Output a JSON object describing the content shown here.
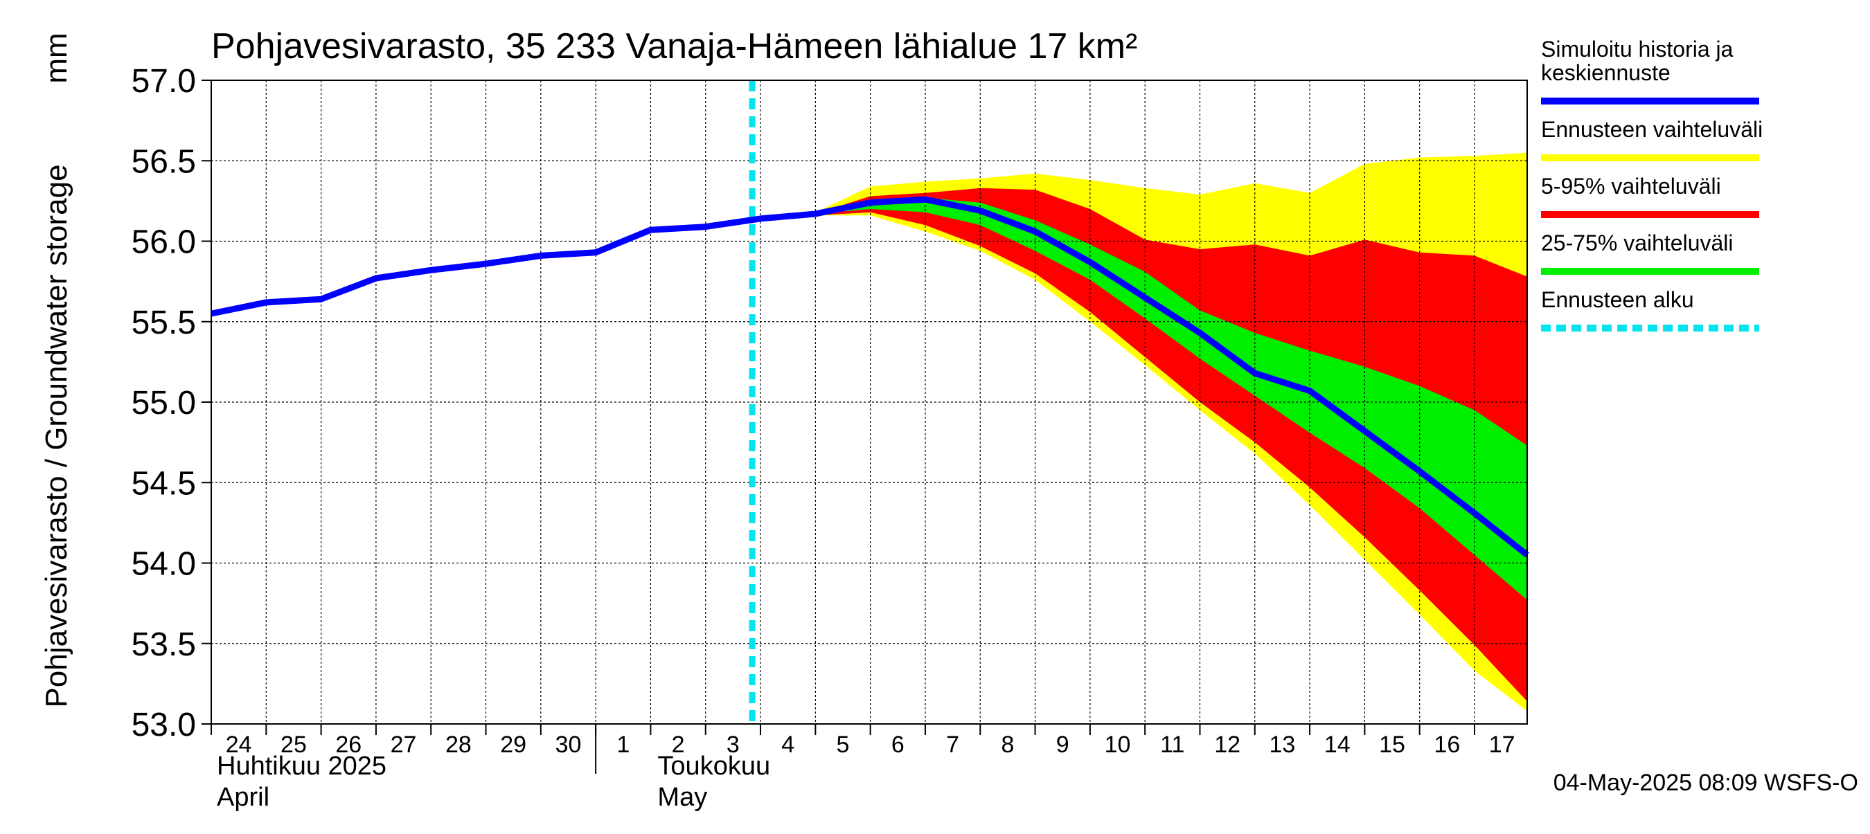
{
  "chart_data": {
    "type": "area",
    "title": "Pohjavesivarasto, 35 233 Vanaja-Hämeen lähialue 17 km²",
    "ylabel": "Pohjavesivarasto / Groundwater storage",
    "yunit": "mm",
    "ylim": [
      53.0,
      57.0
    ],
    "yticks": [
      "53.0",
      "53.5",
      "54.0",
      "54.5",
      "55.0",
      "55.5",
      "56.0",
      "56.5",
      "57.0"
    ],
    "xlim": [
      "2025-04-24",
      "2025-05-17T23:00"
    ],
    "x_tick_labels": [
      "24",
      "25",
      "26",
      "27",
      "28",
      "29",
      "30",
      "1",
      "2",
      "3",
      "4",
      "5",
      "6",
      "7",
      "8",
      "9",
      "10",
      "11",
      "12",
      "13",
      "14",
      "15",
      "16",
      "17"
    ],
    "month_labels": [
      {
        "fi": "Huhtikuu  2025",
        "en": "April"
      },
      {
        "fi": "Toukokuu",
        "en": "May"
      }
    ],
    "grid": true,
    "legend_position": "right",
    "forecast_start": "2025-05-04",
    "timestamp": "04-May-2025 08:09 WSFS-O",
    "colors": {
      "history": "#0000ff",
      "range_full": "#ffff00",
      "range_5_95": "#ff0000",
      "range_25_75": "#00ee00",
      "forecast_start": "#00e5ee"
    },
    "legend": [
      {
        "label_lines": [
          "Simuloitu historia ja",
          "keskiennuste"
        ],
        "key": "history",
        "style": "solid"
      },
      {
        "label_lines": [
          "Ennusteen vaihteluväli"
        ],
        "key": "range_full",
        "style": "solid"
      },
      {
        "label_lines": [
          "5-95% vaihteluväli"
        ],
        "key": "range_5_95",
        "style": "solid"
      },
      {
        "label_lines": [
          "25-75% vaihteluväli"
        ],
        "key": "range_25_75",
        "style": "solid"
      },
      {
        "label_lines": [
          "Ennusteen alku"
        ],
        "key": "forecast_start",
        "style": "dashed"
      }
    ],
    "series": [
      {
        "name": "Simuloitu historia ja keskiennuste",
        "x": [
          "2025-04-24",
          "2025-04-25",
          "2025-04-26",
          "2025-04-27",
          "2025-04-28",
          "2025-04-29",
          "2025-04-30",
          "2025-05-01",
          "2025-05-02",
          "2025-05-03",
          "2025-05-04",
          "2025-05-05",
          "2025-05-06",
          "2025-05-07",
          "2025-05-08",
          "2025-05-09",
          "2025-05-10",
          "2025-05-11",
          "2025-05-12",
          "2025-05-13",
          "2025-05-14",
          "2025-05-15",
          "2025-05-16",
          "2025-05-17",
          "2025-05-17T23:00"
        ],
        "y": [
          55.55,
          55.62,
          55.64,
          55.77,
          55.82,
          55.86,
          55.91,
          55.93,
          56.07,
          56.09,
          56.14,
          56.17,
          56.24,
          56.26,
          56.19,
          56.06,
          55.87,
          55.65,
          55.43,
          55.18,
          55.07,
          54.82,
          54.57,
          54.31,
          54.05
        ]
      }
    ],
    "bands": {
      "x": [
        "2025-05-04",
        "2025-05-05",
        "2025-05-06",
        "2025-05-07",
        "2025-05-08",
        "2025-05-09",
        "2025-05-10",
        "2025-05-11",
        "2025-05-12",
        "2025-05-13",
        "2025-05-14",
        "2025-05-15",
        "2025-05-16",
        "2025-05-17",
        "2025-05-17T23:00"
      ],
      "full_hi": [
        56.14,
        56.18,
        56.34,
        56.37,
        56.39,
        56.42,
        56.38,
        56.33,
        56.29,
        56.36,
        56.3,
        56.48,
        56.52,
        56.53,
        56.55
      ],
      "full_lo": [
        56.14,
        56.16,
        56.16,
        56.06,
        55.94,
        55.76,
        55.5,
        55.23,
        54.95,
        54.68,
        54.36,
        54.02,
        53.68,
        53.33,
        53.08
      ],
      "p95": [
        56.14,
        56.17,
        56.28,
        56.3,
        56.33,
        56.32,
        56.2,
        56.01,
        55.95,
        55.98,
        55.91,
        56.01,
        55.93,
        55.91,
        55.78
      ],
      "p5": [
        56.14,
        56.16,
        56.18,
        56.1,
        55.97,
        55.8,
        55.56,
        55.28,
        55.0,
        54.75,
        54.47,
        54.16,
        53.83,
        53.49,
        53.14
      ],
      "p75": [
        56.14,
        56.17,
        56.25,
        56.27,
        56.24,
        56.13,
        55.98,
        55.81,
        55.57,
        55.43,
        55.32,
        55.22,
        55.1,
        54.95,
        54.73
      ],
      "p25": [
        56.14,
        56.17,
        56.2,
        56.18,
        56.1,
        55.94,
        55.76,
        55.52,
        55.27,
        55.04,
        54.81,
        54.59,
        54.34,
        54.05,
        53.77
      ]
    }
  }
}
